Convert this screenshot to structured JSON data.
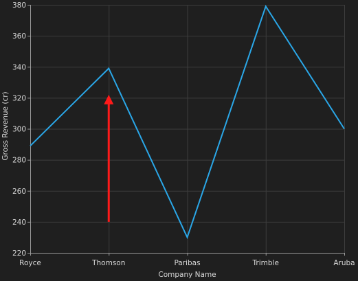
{
  "chart_data": {
    "type": "line",
    "categories": [
      "Royce",
      "Thomson",
      "Paribas",
      "Trimble",
      "Aruba"
    ],
    "series": [
      {
        "values": [
          289,
          339,
          230,
          379,
          300
        ]
      }
    ],
    "xlabel": "Company Name",
    "ylabel": "Gross Revenue (cr)",
    "ylim": [
      220,
      380
    ],
    "yticks": [
      220,
      240,
      260,
      280,
      300,
      320,
      340,
      360,
      380
    ],
    "grid": true,
    "annotation": {
      "type": "arrow",
      "category": "Thomson",
      "from_value": 240,
      "to_value": 322
    }
  },
  "colors": {
    "background": "#1f1f1f",
    "series_line": "#2aa7e8",
    "annotation_arrow": "#ff1a1a"
  }
}
